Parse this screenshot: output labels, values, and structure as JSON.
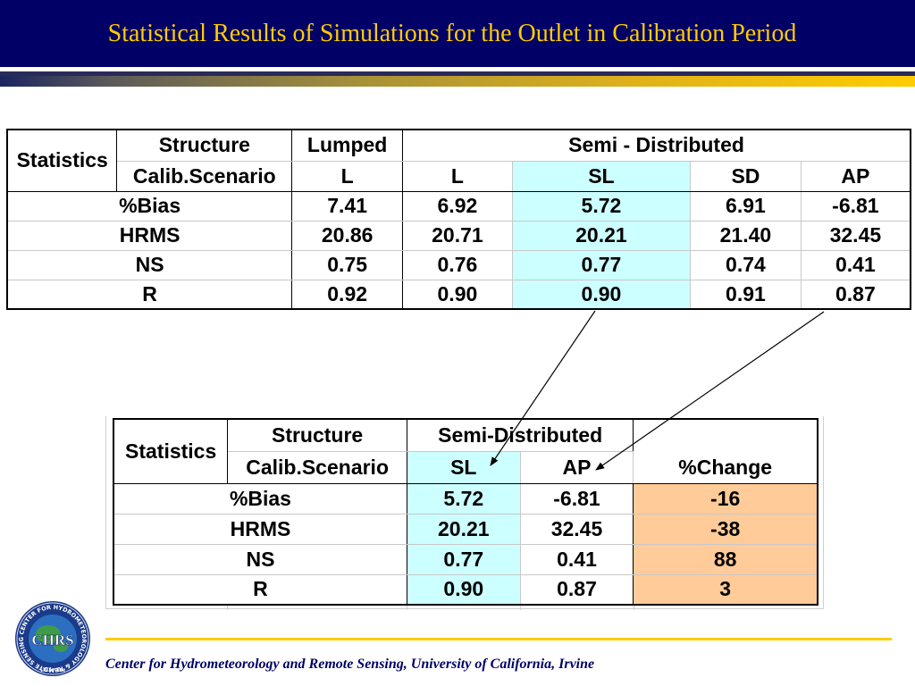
{
  "slide": {
    "title": "Statistical Results of Simulations for the Outlet in Calibration Period",
    "footer": "Center for Hydrometeorology and Remote Sensing, University of California, Irvine"
  },
  "logo": {
    "text": "CHRS",
    "ring_text": "CENTER FOR HYDROMETEOROLOGY & REMOTE SENSING",
    "bottom_text": "UCIrvine"
  },
  "table1": {
    "statistics_label": "Statistics",
    "structure_label": "Structure",
    "calib_label": "Calib.Scenario",
    "lumped_label": "Lumped",
    "semi_label": "Semi - Distributed",
    "scenarios": [
      "L",
      "L",
      "SL",
      "SD",
      "AP"
    ],
    "rows": [
      {
        "name": "%Bias",
        "values": [
          "7.41",
          "6.92",
          "5.72",
          "6.91",
          "-6.81"
        ]
      },
      {
        "name": "HRMS",
        "values": [
          "20.86",
          "20.71",
          "20.21",
          "21.40",
          "32.45"
        ]
      },
      {
        "name": "NS",
        "values": [
          "0.75",
          "0.76",
          "0.77",
          "0.74",
          "0.41"
        ]
      },
      {
        "name": "R",
        "values": [
          "0.92",
          "0.90",
          "0.90",
          "0.91",
          "0.87"
        ]
      }
    ]
  },
  "table2": {
    "statistics_label": "Statistics",
    "structure_label": "Structure",
    "calib_label": "Calib.Scenario",
    "semi_label": "Semi-Distributed",
    "scenarios": [
      "SL",
      "AP"
    ],
    "change_label": "%Change",
    "rows": [
      {
        "name": "%Bias",
        "values": [
          "5.72",
          "-6.81"
        ],
        "change": "-16"
      },
      {
        "name": "HRMS",
        "values": [
          "20.21",
          "32.45"
        ],
        "change": "-38"
      },
      {
        "name": "NS",
        "values": [
          "0.77",
          "0.41"
        ],
        "change": "88"
      },
      {
        "name": "R",
        "values": [
          "0.90",
          "0.87"
        ],
        "change": "3"
      }
    ]
  },
  "colors": {
    "header_bg": "#000066",
    "title_text": "#ffcc00",
    "highlight_cyan": "#ccffff",
    "highlight_peach": "#ffcc99",
    "footer_text": "#000066"
  }
}
